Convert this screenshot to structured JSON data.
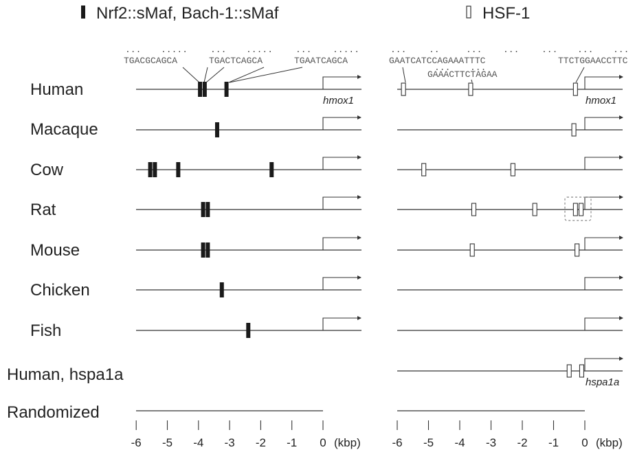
{
  "legend": {
    "nrf2_label": "Nrf2::sMaf, Bach-1::sMaf",
    "hsf_label": "HSF-1"
  },
  "species": [
    "Human",
    "Macaque",
    "Cow",
    "Rat",
    "Mouse",
    "Chicken",
    "Fish",
    "Human, hspa1a",
    "Randomized"
  ],
  "gene_labels": {
    "left_human": "hmox1",
    "right_human": "hmox1",
    "right_hspa1a": "hspa1a"
  },
  "sequences": {
    "left": [
      "TGACGCAGCA",
      "TGACTCAGCA",
      "TGAATCAGCA"
    ],
    "right_top": [
      "GAATCATCCAGAAATTTC",
      "TTCTGGAACCTTC"
    ],
    "right_bottom": [
      "GAAACTTCTAGAA"
    ],
    "dots": {
      "left": [
        "...",
        ".....",
        "...",
        ".....",
        "...",
        "....."
      ],
      "right_top": [
        "...",
        "..",
        "...",
        "...",
        "...",
        "...",
        "..."
      ],
      "right_bottom": [
        "...",
        "..."
      ]
    }
  },
  "axis": {
    "left_ticks": [
      "-6",
      "-5",
      "-4",
      "-3",
      "-2",
      "-1",
      "0"
    ],
    "right_ticks": [
      "-6",
      "-5",
      "-4",
      "-3",
      "-2",
      "-1",
      "0"
    ],
    "unit": "(kbp)"
  },
  "sites": {
    "nrf2": [
      {
        "row": 0,
        "kbp": [
          -3.95,
          -3.8,
          -3.1
        ]
      },
      {
        "row": 1,
        "kbp": [
          -3.4
        ]
      },
      {
        "row": 2,
        "kbp": [
          -5.55,
          -5.4,
          -4.65,
          -1.65
        ]
      },
      {
        "row": 3,
        "kbp": [
          -3.85,
          -3.7
        ]
      },
      {
        "row": 4,
        "kbp": [
          -3.85,
          -3.7
        ]
      },
      {
        "row": 5,
        "kbp": [
          -3.25
        ]
      },
      {
        "row": 6,
        "kbp": [
          -2.4
        ]
      }
    ],
    "hsf": [
      {
        "row": 0,
        "kbp": [
          -5.8,
          -3.65,
          -0.3
        ]
      },
      {
        "row": 1,
        "kbp": [
          -0.35
        ]
      },
      {
        "row": 2,
        "kbp": [
          -5.15,
          -2.3
        ]
      },
      {
        "row": 3,
        "kbp": [
          -3.55,
          -1.6,
          -0.3,
          -0.12
        ]
      },
      {
        "row": 4,
        "kbp": [
          -3.6,
          -0.25
        ]
      },
      {
        "row": 7,
        "kbp": [
          -0.5,
          -0.1
        ]
      }
    ]
  },
  "colors": {
    "line": "#333333",
    "nrf2_fill": "#1a1a1a",
    "hsf_fill": "#ffffff",
    "box_dash": "#888888"
  }
}
